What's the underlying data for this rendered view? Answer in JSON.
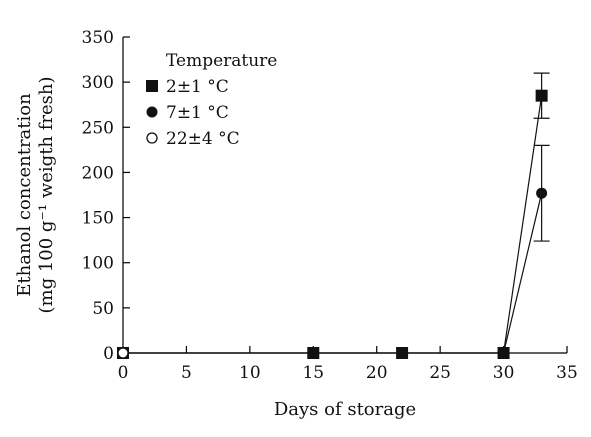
{
  "chart_data": {
    "type": "scatter",
    "xlabel": "Days of storage",
    "ylabel_line1": "Ethanol concentration",
    "ylabel_line2": "(mg 100 g⁻¹ weigth fresh)",
    "xlim": [
      0,
      35
    ],
    "ylim": [
      0,
      350
    ],
    "xticks": [
      0,
      5,
      10,
      15,
      20,
      25,
      30,
      35
    ],
    "yticks": [
      0,
      50,
      100,
      150,
      200,
      250,
      300,
      350
    ],
    "grid": false,
    "legend": {
      "title": "Temperature",
      "placement": "top-left"
    },
    "series": [
      {
        "name": "2±1 °C",
        "marker": "filled-square",
        "color": "#111111",
        "connected": true,
        "points": [
          {
            "x": 0,
            "y": 0
          },
          {
            "x": 15,
            "y": 0
          },
          {
            "x": 22,
            "y": 0
          },
          {
            "x": 30,
            "y": 0
          },
          {
            "x": 33,
            "y": 285,
            "err": 25
          }
        ]
      },
      {
        "name": "7±1 °C",
        "marker": "filled-circle",
        "color": "#111111",
        "connected": true,
        "points": [
          {
            "x": 0,
            "y": 0
          },
          {
            "x": 30,
            "y": 0
          },
          {
            "x": 33,
            "y": 177,
            "err": 53
          }
        ]
      },
      {
        "name": "22±4 °C",
        "marker": "open-circle",
        "color": "#111111",
        "connected": false,
        "points": [
          {
            "x": 0,
            "y": 0
          }
        ]
      }
    ]
  }
}
